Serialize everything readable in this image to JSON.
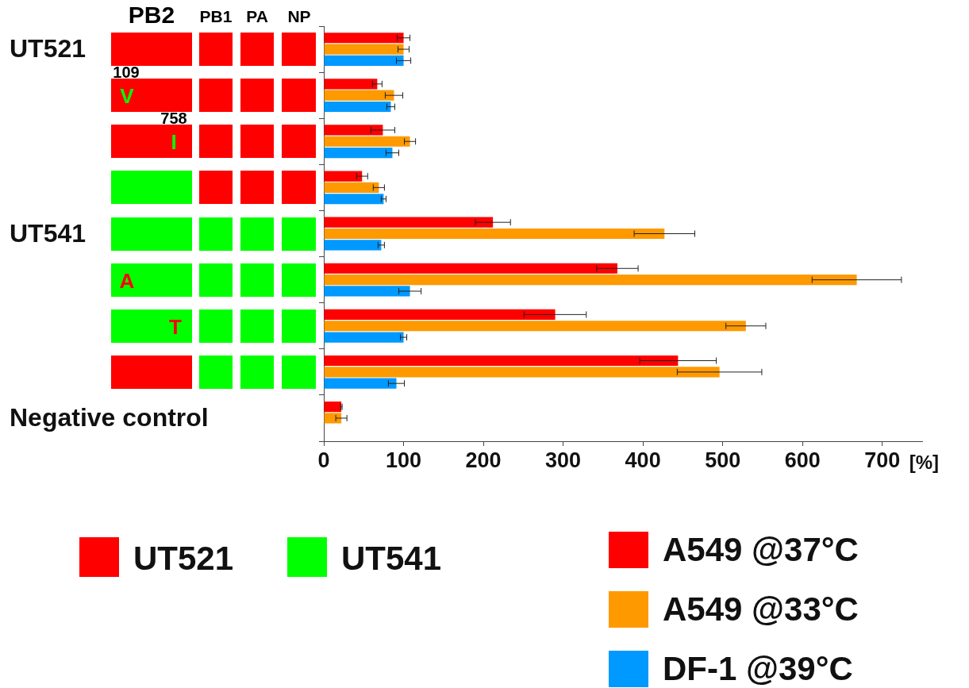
{
  "chart_data": {
    "type": "bar",
    "orientation": "horizontal",
    "xlabel": "[%]",
    "categories": [
      "UT521",
      null,
      null,
      null,
      "UT541",
      null,
      null,
      null,
      "Negative control"
    ],
    "series": [
      {
        "name": "A549 @37°C",
        "color": "#ff0000",
        "values": [
          100,
          67,
          74,
          48,
          212,
          368,
          290,
          444,
          22
        ],
        "errors": [
          8,
          6,
          15,
          7,
          22,
          26,
          39,
          48,
          1
        ]
      },
      {
        "name": "A549 @33°C",
        "color": "#ff9900",
        "values": [
          100,
          88,
          108,
          69,
          427,
          668,
          529,
          496,
          22
        ],
        "errors": [
          7,
          11,
          7,
          7,
          38,
          56,
          25,
          53,
          7
        ]
      },
      {
        "name": "DF-1 @39°C",
        "color": "#0099ff",
        "values": [
          100,
          84,
          86,
          75,
          72,
          108,
          100,
          91,
          null
        ],
        "errors": [
          9,
          5,
          8,
          3,
          4,
          14,
          4,
          10,
          null
        ]
      }
    ],
    "xlim": [
      0,
      750
    ],
    "xticks": [
      0,
      100,
      200,
      300,
      400,
      500,
      600,
      700
    ],
    "legend": "bottom right",
    "annotations": [
      "PB2",
      "PB1",
      "PA",
      "NP",
      "109",
      "V",
      "758",
      "I",
      "A",
      "T",
      "UT521",
      "UT541"
    ]
  }
}
